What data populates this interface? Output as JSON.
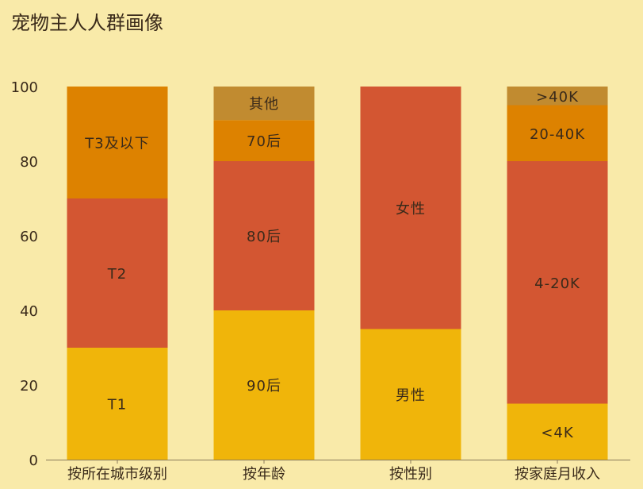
{
  "chart_data": {
    "type": "bar",
    "stacked": true,
    "title": "宠物主人人群画像",
    "xlabel": "",
    "ylabel": "",
    "ylim": [
      0,
      100
    ],
    "yticks": [
      0,
      20,
      40,
      60,
      80,
      100
    ],
    "grid": false,
    "legend": "none",
    "categories": [
      "按所在城市级别",
      "按年龄",
      "按性别",
      "按家庭月收入"
    ],
    "bars": [
      {
        "category": "按所在城市级别",
        "segments": [
          {
            "label": "T1",
            "value": 30,
            "color": "#f0b50a"
          },
          {
            "label": "T2",
            "value": 40,
            "color": "#d35632"
          },
          {
            "label": "T3及以下",
            "value": 30,
            "color": "#dd8200"
          }
        ]
      },
      {
        "category": "按年龄",
        "segments": [
          {
            "label": "90后",
            "value": 40,
            "color": "#f0b50a"
          },
          {
            "label": "80后",
            "value": 40,
            "color": "#d35632"
          },
          {
            "label": "70后",
            "value": 11,
            "color": "#dd8200"
          },
          {
            "label": "其他",
            "value": 9,
            "color": "#c18b30"
          }
        ]
      },
      {
        "category": "按性别",
        "segments": [
          {
            "label": "男性",
            "value": 35,
            "color": "#f0b50a"
          },
          {
            "label": "女性",
            "value": 65,
            "color": "#d35632"
          }
        ]
      },
      {
        "category": "按家庭月收入",
        "segments": [
          {
            "label": "<4K",
            "value": 15,
            "color": "#f0b50a"
          },
          {
            "label": "4-20K",
            "value": 65,
            "color": "#d35632"
          },
          {
            "label": "20-40K",
            "value": 15,
            "color": "#dd8200"
          },
          {
            "label": ">40K",
            "value": 5,
            "color": "#c18b30"
          }
        ]
      }
    ]
  }
}
